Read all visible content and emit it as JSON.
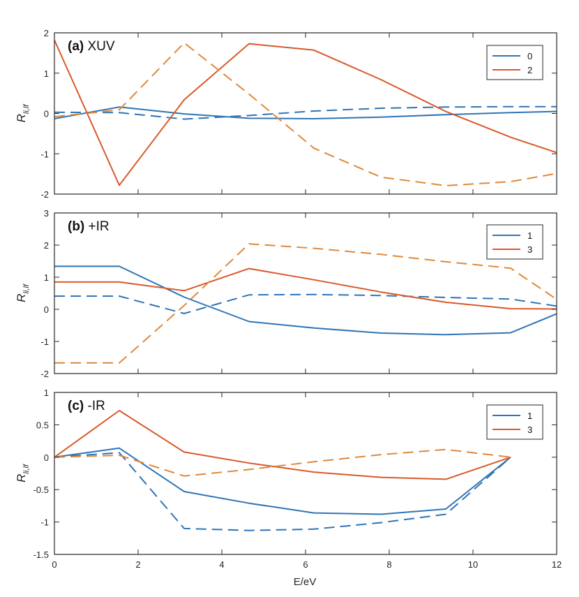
{
  "figure": {
    "xlabel": "E/eV",
    "ylabel_main": "R",
    "ylabel_sub": "li,lf"
  },
  "colors": {
    "blue": "#2f74b5",
    "orange": "#d9592a",
    "dashed_orange": "#e0883a",
    "axis": "#262626"
  },
  "chart_data": [
    {
      "type": "line",
      "panel_label_bold": "(a)",
      "panel_label_text": " XUV",
      "xlim": [
        0,
        12
      ],
      "ylim": [
        -2,
        2
      ],
      "yticks": [
        -2,
        -1,
        0,
        1,
        2
      ],
      "ytick_labels": [
        "-2",
        "-1",
        "0",
        "1",
        "2"
      ],
      "xticks": [
        0,
        2,
        4,
        6,
        8,
        10,
        12
      ],
      "xtick_labels": [
        "0",
        "2",
        "4",
        "6",
        "8",
        "10",
        "12"
      ],
      "show_xtick_labels": false,
      "legend": [
        "0",
        "2"
      ],
      "series": [
        {
          "name": "0",
          "color": "blue",
          "style": "solid",
          "x": [
            0,
            1.55,
            3.1,
            4.65,
            6.2,
            7.8,
            9.35,
            10.9,
            12
          ],
          "y": [
            -0.13,
            0.16,
            -0.01,
            -0.12,
            -0.13,
            -0.09,
            -0.03,
            0.02,
            0.05
          ]
        },
        {
          "color": "blue",
          "style": "dashed",
          "x": [
            0,
            1.55,
            3.1,
            4.65,
            6.2,
            7.8,
            9.35,
            10.9,
            12
          ],
          "y": [
            0.03,
            0.02,
            -0.14,
            -0.05,
            0.06,
            0.13,
            0.16,
            0.17,
            0.17
          ]
        },
        {
          "name": "2",
          "color": "orange",
          "style": "solid",
          "x": [
            0,
            1.55,
            3.1,
            4.65,
            6.2,
            7.8,
            9.35,
            10.9,
            12
          ],
          "y": [
            1.82,
            -1.78,
            0.34,
            1.73,
            1.57,
            0.84,
            0.05,
            -0.59,
            -0.97
          ]
        },
        {
          "color": "dashed_orange",
          "style": "dashed",
          "x": [
            0,
            1.55,
            3.1,
            4.65,
            6.2,
            7.8,
            9.35,
            10.9,
            12
          ],
          "y": [
            -0.08,
            0.09,
            1.75,
            0.48,
            -0.86,
            -1.58,
            -1.79,
            -1.69,
            -1.49
          ]
        }
      ]
    },
    {
      "type": "line",
      "panel_label_bold": "(b)",
      "panel_label_text": " +IR",
      "xlim": [
        0,
        12
      ],
      "ylim": [
        -2,
        3
      ],
      "yticks": [
        -2,
        -1,
        0,
        1,
        2,
        3
      ],
      "ytick_labels": [
        "-2",
        "-1",
        "0",
        "1",
        "2",
        "3"
      ],
      "xticks": [
        0,
        2,
        4,
        6,
        8,
        10,
        12
      ],
      "xtick_labels": [
        "0",
        "2",
        "4",
        "6",
        "8",
        "10",
        "12"
      ],
      "show_xtick_labels": false,
      "legend": [
        "1",
        "3"
      ],
      "series": [
        {
          "name": "1",
          "color": "blue",
          "style": "solid",
          "x": [
            0,
            1.55,
            3.1,
            4.65,
            6.2,
            7.8,
            9.35,
            10.9,
            12
          ],
          "y": [
            1.34,
            1.34,
            0.38,
            -0.38,
            -0.58,
            -0.74,
            -0.79,
            -0.73,
            -0.14
          ]
        },
        {
          "color": "blue",
          "style": "dashed",
          "x": [
            0,
            1.55,
            3.1,
            4.65,
            6.2,
            7.8,
            9.35,
            10.9,
            12
          ],
          "y": [
            0.41,
            0.41,
            -0.13,
            0.45,
            0.46,
            0.43,
            0.37,
            0.32,
            0.1
          ]
        },
        {
          "name": "3",
          "color": "orange",
          "style": "solid",
          "x": [
            0,
            1.55,
            3.1,
            4.65,
            6.2,
            7.8,
            9.35,
            10.9,
            12
          ],
          "y": [
            0.85,
            0.85,
            0.58,
            1.27,
            0.92,
            0.54,
            0.22,
            0.02,
            0.01
          ]
        },
        {
          "color": "dashed_orange",
          "style": "dashed",
          "x": [
            0,
            1.55,
            3.1,
            4.65,
            6.2,
            7.8,
            9.35,
            10.9,
            12
          ],
          "y": [
            -1.67,
            -1.67,
            0.12,
            2.04,
            1.9,
            1.71,
            1.48,
            1.28,
            0.31
          ]
        }
      ]
    },
    {
      "type": "line",
      "panel_label_bold": "(c)",
      "panel_label_text": " -IR",
      "xlim": [
        0,
        12
      ],
      "ylim": [
        -1.5,
        1
      ],
      "yticks": [
        -1.5,
        -1,
        -0.5,
        0,
        0.5,
        1
      ],
      "ytick_labels": [
        "-1.5",
        "-1",
        "-0.5",
        "0",
        "0.5",
        "1"
      ],
      "xticks": [
        0,
        2,
        4,
        6,
        8,
        10,
        12
      ],
      "xtick_labels": [
        "0",
        "2",
        "4",
        "6",
        "8",
        "10",
        "12"
      ],
      "show_xtick_labels": true,
      "legend": [
        "1",
        "3"
      ],
      "series": [
        {
          "name": "1",
          "color": "blue",
          "style": "solid",
          "x": [
            0,
            1.55,
            3.1,
            4.65,
            6.2,
            7.8,
            9.35,
            10.9
          ],
          "y": [
            0,
            0.14,
            -0.53,
            -0.71,
            -0.86,
            -0.88,
            -0.8,
            0
          ]
        },
        {
          "color": "blue",
          "style": "dashed",
          "x": [
            0,
            1.55,
            3.1,
            4.65,
            6.2,
            7.8,
            9.35,
            10.9
          ],
          "y": [
            0,
            0.07,
            -1.1,
            -1.13,
            -1.11,
            -1.01,
            -0.88,
            0
          ]
        },
        {
          "name": "3",
          "color": "orange",
          "style": "solid",
          "x": [
            0,
            1.55,
            3.1,
            4.65,
            6.2,
            7.8,
            9.35,
            10.9
          ],
          "y": [
            0,
            0.72,
            0.08,
            -0.09,
            -0.23,
            -0.31,
            -0.34,
            0
          ]
        },
        {
          "color": "dashed_orange",
          "style": "dashed",
          "x": [
            0,
            1.55,
            3.1,
            4.65,
            6.2,
            7.8,
            9.35,
            10.9
          ],
          "y": [
            0,
            0.03,
            -0.29,
            -0.19,
            -0.07,
            0.04,
            0.12,
            0
          ]
        }
      ]
    }
  ]
}
